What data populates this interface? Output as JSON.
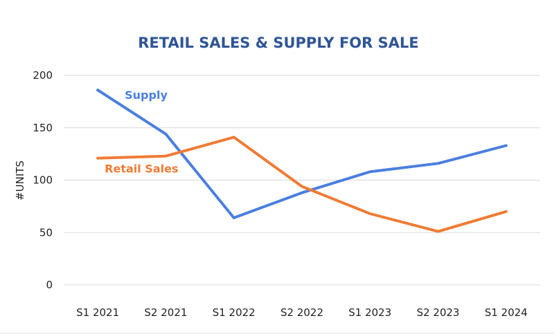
{
  "chart_data": {
    "type": "line",
    "title": "RETAIL SALES & SUPPLY FOR SALE",
    "xlabel": "",
    "ylabel": "#UNITS",
    "ylim": [
      0,
      200
    ],
    "yticks": [
      0,
      50,
      100,
      150,
      200
    ],
    "grid": true,
    "legend": "inline labels",
    "categories": [
      "S1 2021",
      "S2 2021",
      "S1 2022",
      "S2 2022",
      "S1 2023",
      "S2 2023",
      "S1 2024"
    ],
    "series": [
      {
        "name": "Supply",
        "color": "#4a7fe0",
        "values": [
          186,
          144,
          64,
          88,
          108,
          116,
          133
        ]
      },
      {
        "name": "Retail Sales",
        "color": "#f07b35",
        "values": [
          121,
          123,
          141,
          94,
          68,
          51,
          70
        ]
      }
    ]
  }
}
